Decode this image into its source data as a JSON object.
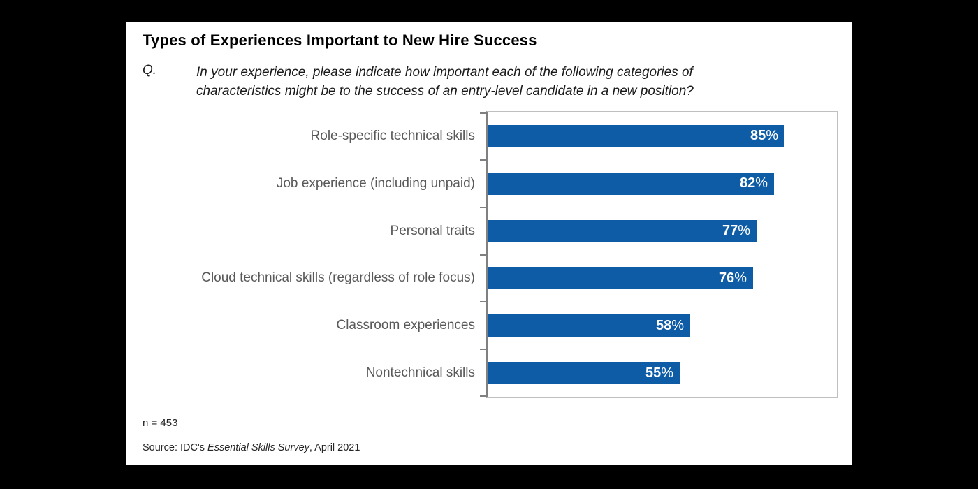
{
  "header": {
    "title": "Types of Experiences Important to New Hire Success",
    "question_label": "Q.",
    "question_line1": "In your experience, please indicate how important each of the following categories of",
    "question_line2": "characteristics might be to the success of an entry-level candidate in a new position?"
  },
  "chart_data": {
    "type": "bar",
    "orientation": "horizontal",
    "title": "Types of Experiences Important to New Hire Success",
    "categories": [
      "Role-specific technical skills",
      "Job experience (including unpaid)",
      "Personal traits",
      "Cloud technical skills (regardless of role focus)",
      "Classroom experiences",
      "Nontechnical skills"
    ],
    "values": [
      85,
      82,
      77,
      76,
      58,
      55
    ],
    "value_labels": [
      "85%",
      "82%",
      "77%",
      "76%",
      "58%",
      "55%"
    ],
    "xlim": [
      0,
      100
    ],
    "grid": false,
    "legend": false,
    "bar_color": "#0e5ca6",
    "axis_color": "#808080",
    "frame_color": "#bfbfbf",
    "label_color": "#595959"
  },
  "footer": {
    "n": "n = 453",
    "source_prefix": "Source: IDC's ",
    "source_italic": "Essential Skills Survey",
    "source_suffix": ", April 2021"
  }
}
